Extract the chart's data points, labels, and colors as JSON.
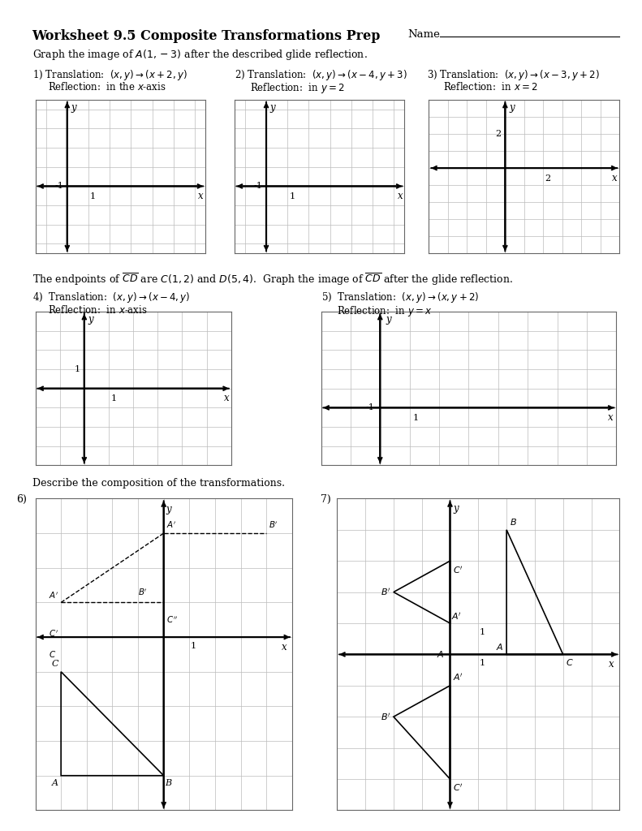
{
  "title_bold": "Worksheet 9.5 Composite Transformations Prep",
  "name_label": "Name",
  "subtitle1": "Graph the image of $A(1,-3)$ after the described glide reflection.",
  "p1_num": "1)",
  "p1_trans": "Translation:  $(x, y)\\rightarrow(x+2, y)$",
  "p1_refl": "Reflection:  in the $x$-axis",
  "p2_num": "2)",
  "p2_trans": "Translation:  $(x, y)\\rightarrow(x-4, y+3)$",
  "p2_refl": "Reflection:  in $y=2$",
  "p3_num": "3)",
  "p3_trans": "Translation:  $(x, y)\\rightarrow(x-3, y+2)$",
  "p3_refl": "Reflection:  in $x=2$",
  "subtitle2": "The endpoints of $\\overline{CD}$ are $C(1,2)$ and $D(5,4)$.  Graph the image of $\\overline{CD}$ after the glide reflection.",
  "p4_num": "4)",
  "p4_trans": "Translation:  $(x, y)\\rightarrow(x-4, y)$",
  "p4_refl": "Reflection:  in $x$-axis",
  "p5_num": "5)",
  "p5_trans": "Translation:  $(x, y)\\rightarrow(x, y+2)$",
  "p5_refl": "Reflection:  in $y=x$",
  "subtitle3": "Describe the composition of the transformations.",
  "p6_num": "6)",
  "p7_num": "7)"
}
